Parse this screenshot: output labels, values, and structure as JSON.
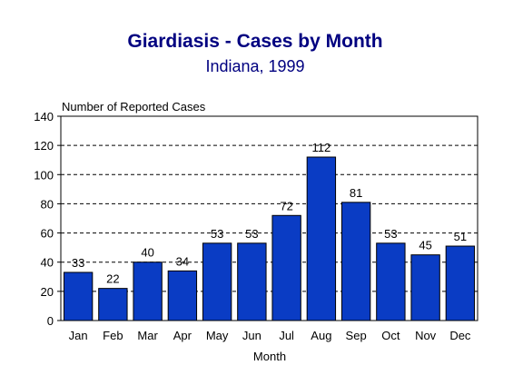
{
  "chart_data": {
    "type": "bar",
    "title": "Giardiasis - Cases by Month",
    "subtitle": "Indiana, 1999",
    "xlabel": "Month",
    "ylabel": "Number of Reported Cases",
    "categories": [
      "Jan",
      "Feb",
      "Mar",
      "Apr",
      "May",
      "Jun",
      "Jul",
      "Aug",
      "Sep",
      "Oct",
      "Nov",
      "Dec"
    ],
    "values": [
      33,
      22,
      40,
      34,
      53,
      53,
      72,
      112,
      81,
      53,
      45,
      51
    ],
    "ylim": [
      0,
      140
    ],
    "yticks": [
      0,
      20,
      40,
      60,
      80,
      100,
      120,
      140
    ],
    "grid": true,
    "legend": "none",
    "colors": {
      "bar": "#0a3cc4",
      "bar_outline": "#000000",
      "title": "#000080",
      "grid": "#000000"
    }
  }
}
